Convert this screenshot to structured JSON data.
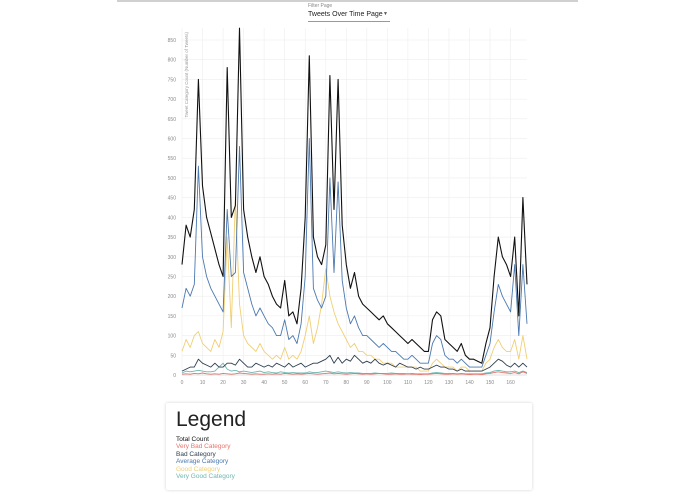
{
  "filter": {
    "label": "Filter Page",
    "selected": "Tweets Over Time Page"
  },
  "chart_data": {
    "type": "line",
    "title": "",
    "xlabel": "",
    "ylabel": "Tweet Category Count (Number of Tweets)",
    "xlim": [
      0,
      168
    ],
    "ylim": [
      0,
      880
    ],
    "xticks": [
      0,
      10,
      20,
      30,
      40,
      50,
      60,
      70,
      80,
      90,
      100,
      110,
      120,
      130,
      140,
      150,
      160
    ],
    "yticks": [
      0,
      50,
      100,
      150,
      200,
      250,
      300,
      350,
      400,
      450,
      500,
      550,
      600,
      650,
      700,
      750,
      800,
      850
    ],
    "grid": true,
    "x_step": 2,
    "series": [
      {
        "name": "Total Count",
        "color": "#111111",
        "values": [
          280,
          380,
          350,
          420,
          750,
          480,
          400,
          360,
          320,
          280,
          250,
          780,
          400,
          430,
          880,
          420,
          350,
          300,
          260,
          300,
          250,
          230,
          200,
          180,
          170,
          240,
          150,
          160,
          130,
          220,
          400,
          810,
          350,
          300,
          280,
          330,
          760,
          420,
          750,
          380,
          280,
          220,
          260,
          200,
          180,
          170,
          160,
          150,
          140,
          150,
          130,
          120,
          110,
          100,
          90,
          80,
          90,
          80,
          70,
          60,
          60,
          140,
          160,
          150,
          90,
          80,
          70,
          60,
          80,
          50,
          40,
          40,
          35,
          30,
          80,
          120,
          250,
          350,
          300,
          280,
          250,
          350,
          150,
          450,
          230
        ]
      },
      {
        "name": "Very Bad Category",
        "color": "#e8736b",
        "values": [
          2,
          3,
          2,
          4,
          3,
          5,
          3,
          2,
          3,
          2,
          4,
          3,
          2,
          3,
          5,
          4,
          3,
          2,
          3,
          2,
          2,
          3,
          2,
          3,
          2,
          4,
          3,
          2,
          3,
          2,
          3,
          4,
          3,
          2,
          3,
          4,
          5,
          3,
          4,
          3,
          2,
          3,
          4,
          3,
          2,
          3,
          2,
          3,
          4,
          3,
          2,
          2,
          3,
          2,
          2,
          3,
          2,
          2,
          1,
          2,
          2,
          3,
          4,
          3,
          2,
          2,
          3,
          2,
          3,
          2,
          1,
          2,
          2,
          1,
          3,
          4,
          6,
          8,
          6,
          5,
          4,
          6,
          3,
          8,
          4
        ]
      },
      {
        "name": "Bad Category",
        "color": "#2d3e50",
        "values": [
          10,
          15,
          20,
          20,
          40,
          30,
          25,
          20,
          30,
          20,
          20,
          30,
          30,
          25,
          40,
          30,
          20,
          20,
          30,
          25,
          20,
          25,
          20,
          30,
          25,
          20,
          30,
          20,
          25,
          30,
          20,
          25,
          30,
          30,
          35,
          40,
          50,
          30,
          45,
          30,
          40,
          35,
          50,
          40,
          30,
          35,
          30,
          40,
          30,
          25,
          30,
          25,
          20,
          30,
          25,
          20,
          20,
          15,
          20,
          15,
          15,
          20,
          25,
          20,
          20,
          15,
          15,
          10,
          15,
          10,
          10,
          10,
          10,
          10,
          15,
          20,
          30,
          40,
          35,
          25,
          20,
          30,
          20,
          30,
          20
        ]
      },
      {
        "name": "Average Category",
        "color": "#4a78b0",
        "values": [
          170,
          220,
          200,
          230,
          530,
          300,
          250,
          220,
          200,
          180,
          160,
          420,
          250,
          260,
          580,
          260,
          220,
          180,
          150,
          170,
          150,
          130,
          120,
          100,
          100,
          140,
          90,
          100,
          80,
          130,
          250,
          600,
          220,
          190,
          170,
          200,
          500,
          260,
          490,
          240,
          170,
          130,
          150,
          120,
          100,
          100,
          90,
          80,
          70,
          80,
          70,
          60,
          60,
          50,
          40,
          40,
          50,
          40,
          30,
          30,
          30,
          80,
          100,
          90,
          50,
          40,
          40,
          30,
          40,
          30,
          20,
          20,
          20,
          20,
          50,
          80,
          160,
          230,
          200,
          180,
          160,
          280,
          100,
          280,
          130
        ]
      },
      {
        "name": "Good Category",
        "color": "#f0cf72",
        "values": [
          60,
          90,
          70,
          100,
          110,
          80,
          70,
          60,
          90,
          70,
          110,
          350,
          120,
          450,
          180,
          100,
          80,
          70,
          60,
          80,
          60,
          50,
          40,
          50,
          40,
          70,
          40,
          50,
          40,
          60,
          100,
          150,
          80,
          120,
          180,
          270,
          200,
          160,
          130,
          110,
          90,
          70,
          80,
          60,
          60,
          50,
          50,
          40,
          40,
          30,
          30,
          30,
          20,
          20,
          20,
          20,
          20,
          20,
          10,
          10,
          10,
          30,
          40,
          30,
          20,
          20,
          20,
          10,
          20,
          20,
          10,
          10,
          10,
          10,
          30,
          40,
          70,
          90,
          70,
          60,
          60,
          90,
          40,
          100,
          40
        ]
      },
      {
        "name": "Very Good Category",
        "color": "#6cb7b0",
        "values": [
          5,
          10,
          8,
          10,
          12,
          10,
          8,
          8,
          10,
          20,
          30,
          15,
          10,
          12,
          8,
          10,
          8,
          6,
          8,
          10,
          6,
          8,
          6,
          5,
          8,
          6,
          5,
          6,
          5,
          5,
          5,
          8,
          6,
          6,
          8,
          10,
          8,
          6,
          8,
          6,
          5,
          6,
          5,
          5,
          4,
          4,
          4,
          5,
          4,
          4,
          4,
          5,
          4,
          4,
          4,
          3,
          4,
          3,
          3,
          3,
          3,
          5,
          6,
          5,
          4,
          4,
          4,
          3,
          4,
          3,
          3,
          3,
          3,
          3,
          5,
          6,
          10,
          12,
          10,
          8,
          8,
          10,
          6,
          10,
          6
        ]
      }
    ]
  },
  "legend": {
    "title": "Legend",
    "items": [
      {
        "label": "Total Count",
        "color": "#111111"
      },
      {
        "label": "Very Bad Category",
        "color": "#e8736b"
      },
      {
        "label": "Bad Category",
        "color": "#2d3e50"
      },
      {
        "label": "Average Category",
        "color": "#4a78b0"
      },
      {
        "label": "Good Category",
        "color": "#f0cf72"
      },
      {
        "label": "Very Good Category",
        "color": "#6cb7b0"
      }
    ]
  }
}
